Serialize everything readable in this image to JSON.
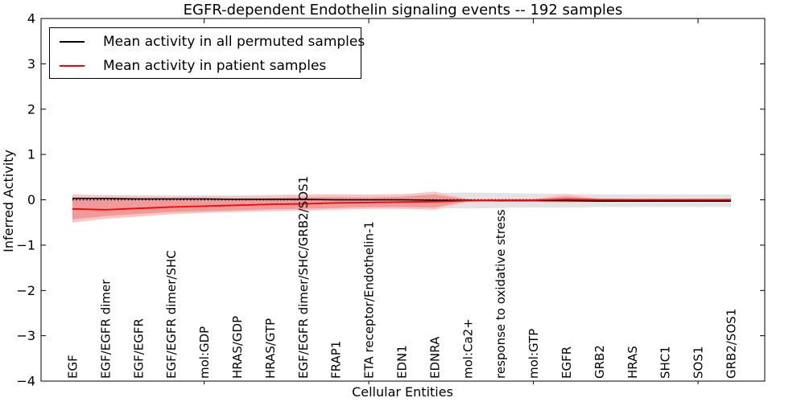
{
  "title": "EGFR-dependent Endothelin signaling events -- 192 samples",
  "axes": {
    "ylabel": "Inferred Activity",
    "xlabel": "Cellular Entities"
  },
  "legend": {
    "items": [
      {
        "label": "Mean activity in all permuted samples",
        "color": "#000000"
      },
      {
        "label": "Mean activity in patient samples",
        "color": "#ff0000"
      }
    ]
  },
  "chart_data": {
    "type": "line",
    "title": "EGFR-dependent Endothelin signaling events -- 192 samples",
    "xlabel": "Cellular Entities",
    "ylabel": "Inferred Activity",
    "ylim": [
      -4,
      4
    ],
    "yticks": [
      4,
      3,
      2,
      1,
      0,
      -1,
      -2,
      -3,
      -4
    ],
    "ytick_labels": [
      "4",
      "3",
      "2",
      "1",
      "0",
      "−1",
      "−2",
      "−3",
      "−4"
    ],
    "grid": false,
    "legend_position": "upper left",
    "zero_line": {
      "style": "dotted",
      "color": "#000000",
      "y": 0
    },
    "xtick_marker_indices": [
      4,
      9,
      14,
      19
    ],
    "categories": [
      "EGF",
      "EGF/EGFR dimer",
      "EGF/EGFR",
      "EGF/EGFR dimer/SHC",
      "mol:GDP",
      "HRAS/GDP",
      "HRAS/GTP",
      "EGF/EGFR dimer/SHC/GRB2/SOS1",
      "FRAP1",
      "ETA receptor/Endothelin-1",
      "EDN1",
      "EDNRA",
      "mol:Ca2+",
      "response to oxidative stress",
      "mol:GTP",
      "EGFR",
      "GRB2",
      "HRAS",
      "SHC1",
      "SOS1",
      "GRB2/SOS1"
    ],
    "series": [
      {
        "name": "Mean activity in all permuted samples",
        "color": "#000000",
        "band_color": "#e3e3e3",
        "values": [
          0.03,
          0.03,
          0.02,
          0.02,
          0.02,
          0.01,
          0.01,
          0.01,
          0.0,
          0.0,
          0.0,
          -0.01,
          -0.01,
          -0.02,
          -0.02,
          -0.02,
          -0.03,
          -0.03,
          -0.03,
          -0.03,
          -0.03
        ],
        "band_upper": [
          0.1,
          0.1,
          0.1,
          0.1,
          0.1,
          0.1,
          0.11,
          0.12,
          0.12,
          0.12,
          0.13,
          0.15,
          0.16,
          0.15,
          0.14,
          0.13,
          0.12,
          0.12,
          0.12,
          0.12,
          0.12
        ],
        "band_lower": [
          -0.12,
          -0.12,
          -0.12,
          -0.12,
          -0.12,
          -0.13,
          -0.13,
          -0.14,
          -0.14,
          -0.15,
          -0.16,
          -0.18,
          -0.19,
          -0.18,
          -0.17,
          -0.17,
          -0.16,
          -0.16,
          -0.16,
          -0.16,
          -0.16
        ]
      },
      {
        "name": "Mean activity in patient samples",
        "color": "#ff0000",
        "band_outer_color": "#f9c6c6",
        "band_inner_color": "#f19a9a",
        "values": [
          -0.2,
          -0.22,
          -0.19,
          -0.16,
          -0.14,
          -0.12,
          -0.1,
          -0.09,
          -0.07,
          -0.06,
          -0.05,
          -0.04,
          -0.02,
          -0.01,
          -0.01,
          0.01,
          0.0,
          0.0,
          0.0,
          0.0,
          0.0
        ],
        "band_outer_upper": [
          0.12,
          0.1,
          0.09,
          0.08,
          0.08,
          0.08,
          0.09,
          0.12,
          0.12,
          0.11,
          0.12,
          0.18,
          0.02,
          0.02,
          0.02,
          0.13,
          0.03,
          0.02,
          0.02,
          0.02,
          0.03
        ],
        "band_outer_lower": [
          -0.5,
          -0.42,
          -0.37,
          -0.32,
          -0.29,
          -0.27,
          -0.25,
          -0.24,
          -0.22,
          -0.2,
          -0.2,
          -0.22,
          -0.05,
          -0.04,
          -0.04,
          -0.07,
          -0.04,
          -0.04,
          -0.04,
          -0.04,
          -0.04
        ],
        "band_inner_upper": [
          0.06,
          0.04,
          0.03,
          0.03,
          0.03,
          0.03,
          0.04,
          0.06,
          0.06,
          0.05,
          0.07,
          0.12,
          0.01,
          0.01,
          0.01,
          0.08,
          0.02,
          0.01,
          0.01,
          0.01,
          0.02
        ],
        "band_inner_lower": [
          -0.43,
          -0.36,
          -0.31,
          -0.27,
          -0.25,
          -0.23,
          -0.21,
          -0.2,
          -0.18,
          -0.16,
          -0.16,
          -0.17,
          -0.03,
          -0.03,
          -0.03,
          -0.05,
          -0.03,
          -0.03,
          -0.03,
          -0.03,
          -0.03
        ]
      }
    ]
  }
}
